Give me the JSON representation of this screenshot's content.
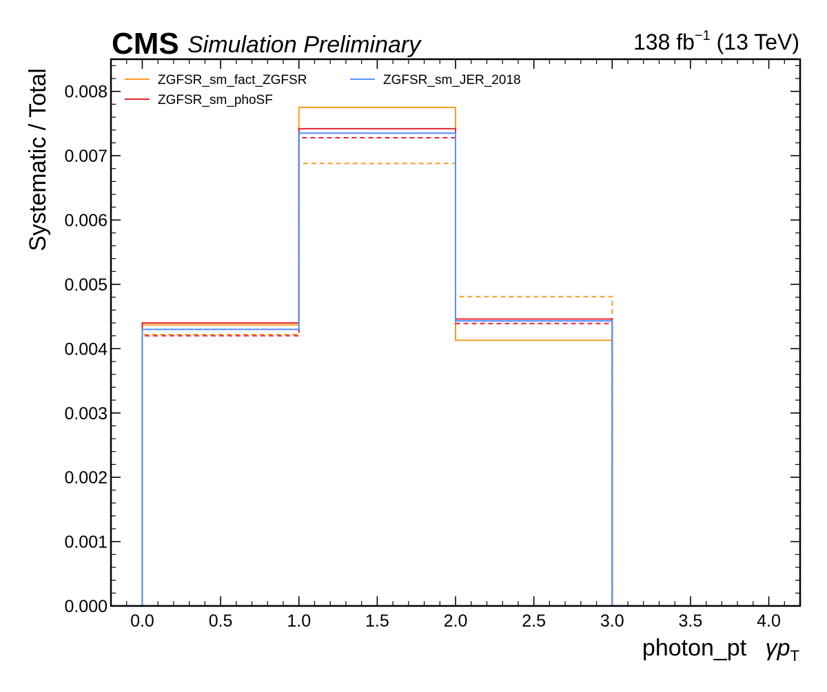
{
  "header": {
    "experiment": "CMS",
    "status": "Simulation Preliminary",
    "luminosity_value": "138 fb",
    "luminosity_exponent": "−1",
    "energy": " (13 TeV)"
  },
  "chart_data": {
    "type": "step",
    "title": "",
    "xlabel": "photon_pt",
    "xlabel_symbol": "γp",
    "xlabel_subscript": "T",
    "ylabel": "Systematic / Total",
    "xlim": [
      -0.2,
      4.2
    ],
    "ylim": [
      0,
      0.0085
    ],
    "x_ticks": [
      "0.0",
      "0.5",
      "1.0",
      "1.5",
      "2.0",
      "2.5",
      "3.0",
      "3.5",
      "4.0"
    ],
    "x_tick_values": [
      0,
      0.5,
      1,
      1.5,
      2,
      2.5,
      3,
      3.5,
      4
    ],
    "y_ticks": [
      "0.000",
      "0.001",
      "0.002",
      "0.003",
      "0.004",
      "0.005",
      "0.006",
      "0.007",
      "0.008"
    ],
    "y_tick_values": [
      0,
      0.001,
      0.002,
      0.003,
      0.004,
      0.005,
      0.006,
      0.007,
      0.008
    ],
    "bin_edges": [
      0,
      1,
      2,
      3
    ],
    "legend_position": "top-left",
    "legend_columns": 2,
    "series": [
      {
        "name": "ZGFSR_sm_fact_ZGFSR",
        "color": "#f89c20",
        "up": [
          0.00437,
          0.00775,
          0.00413
        ],
        "down": [
          0.00422,
          0.00688,
          0.00481
        ]
      },
      {
        "name": "ZGFSR_sm_phoSF",
        "color": "#e42536",
        "up": [
          0.0044,
          0.00742,
          0.00446
        ],
        "down": [
          0.0042,
          0.00728,
          0.00439
        ]
      },
      {
        "name": "ZGFSR_sm_JER_2018",
        "color": "#5790fc",
        "up": [
          0.0043,
          0.00735,
          0.00443
        ],
        "down": [
          0.0043,
          0.00735,
          0.00443
        ]
      }
    ]
  }
}
